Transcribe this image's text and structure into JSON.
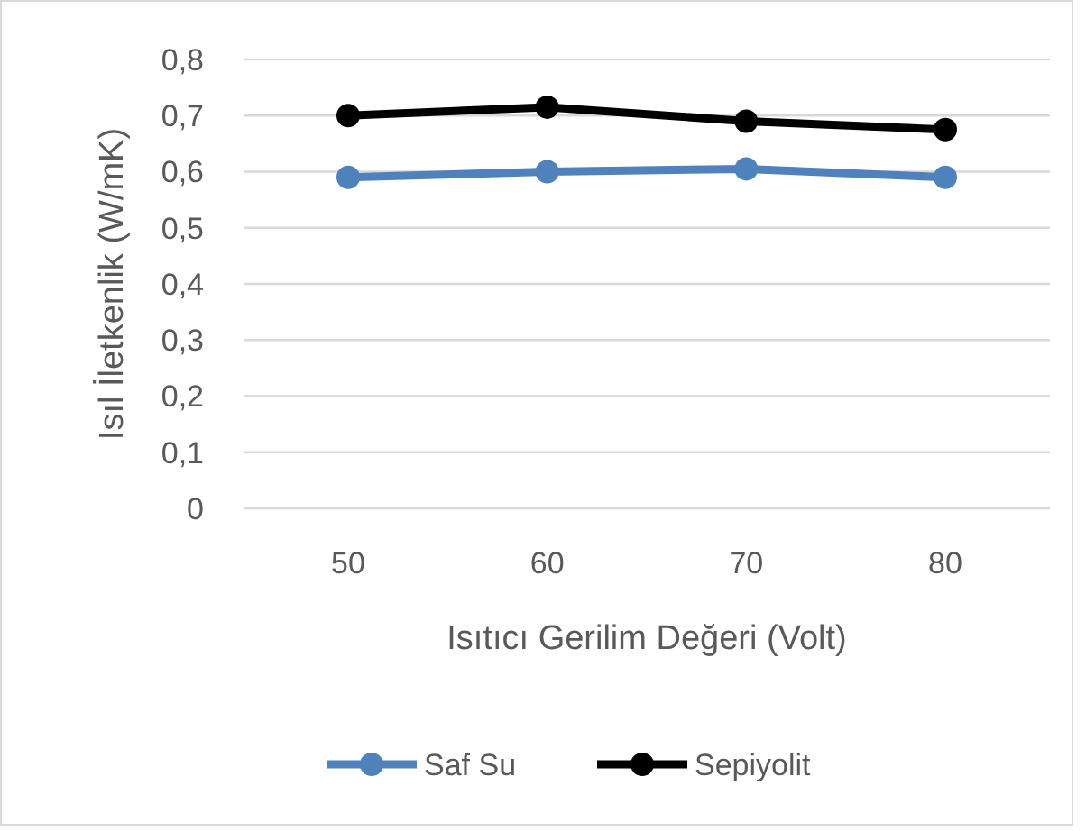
{
  "chart_data": {
    "type": "line",
    "xlabel": "Isıtıcı Gerilim Değeri (Volt)",
    "ylabel": "Isıl İletkenlik (W/mK)",
    "categories": [
      "50",
      "60",
      "70",
      "80"
    ],
    "series": [
      {
        "name": "Saf Su",
        "color": "#4f81bd",
        "values": [
          0.59,
          0.6,
          0.605,
          0.59
        ]
      },
      {
        "name": "Sepiyolit",
        "color": "#000000",
        "values": [
          0.7,
          0.715,
          0.69,
          0.675
        ]
      }
    ],
    "ylim": [
      0,
      0.8
    ],
    "yticks": [
      0,
      {
        "value": 0.1,
        "label": "0,1"
      },
      {
        "value": 0.2,
        "label": "0,2"
      },
      {
        "value": 0.3,
        "label": "0,3"
      },
      {
        "value": 0.4,
        "label": "0,4"
      },
      {
        "value": 0.5,
        "label": "0,5"
      },
      {
        "value": 0.6,
        "label": "0,6"
      },
      {
        "value": 0.7,
        "label": "0,7"
      },
      {
        "value": 0.8,
        "label": "0,8"
      }
    ],
    "grid": "y",
    "legend": "bottom",
    "marker": "circle",
    "line_style": "solid"
  }
}
